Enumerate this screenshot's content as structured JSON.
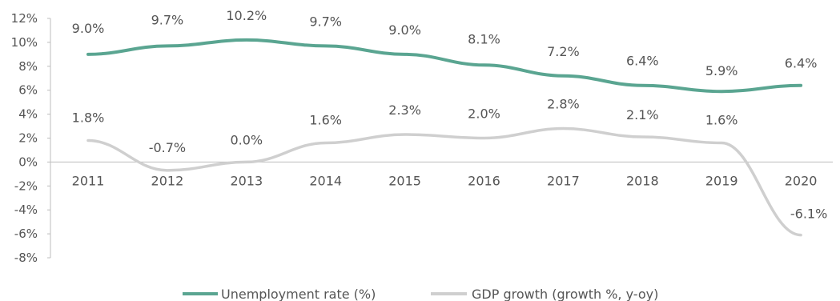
{
  "chart_data": {
    "type": "line",
    "title": "",
    "xlabel": "",
    "ylabel": "",
    "categories": [
      "2011",
      "2012",
      "2013",
      "2014",
      "2015",
      "2016",
      "2017",
      "2018",
      "2019",
      "2020"
    ],
    "ylim": [
      -8,
      12
    ],
    "yticks": [
      12,
      10,
      8,
      6,
      4,
      2,
      0,
      -2,
      -4,
      -6,
      -8
    ],
    "ytick_labels": [
      "12%",
      "10%",
      "8%",
      "6%",
      "4%",
      "2%",
      "0%",
      "-2%",
      "-4%",
      "-6%",
      "-8%"
    ],
    "grid": false,
    "legend_position": "bottom-center",
    "series": [
      {
        "name": "Unemployment rate (%)",
        "color": "#5aa591",
        "values": [
          9.0,
          9.7,
          10.2,
          9.7,
          9.0,
          8.1,
          7.2,
          6.4,
          5.9,
          6.4
        ],
        "labels": [
          "9.0%",
          "9.7%",
          "10.2%",
          "9.7%",
          "9.0%",
          "8.1%",
          "7.2%",
          "6.4%",
          "5.9%",
          "6.4%"
        ]
      },
      {
        "name": "GDP growth (growth %, y-oy)",
        "color": "#cfcfcf",
        "values": [
          1.8,
          -0.7,
          0.0,
          1.6,
          2.3,
          2.0,
          2.8,
          2.1,
          1.6,
          -6.1
        ],
        "labels": [
          "1.8%",
          "-0.7%",
          "0.0%",
          "1.6%",
          "2.3%",
          "2.0%",
          "2.8%",
          "2.1%",
          "1.6%",
          "-6.1%"
        ]
      }
    ]
  }
}
